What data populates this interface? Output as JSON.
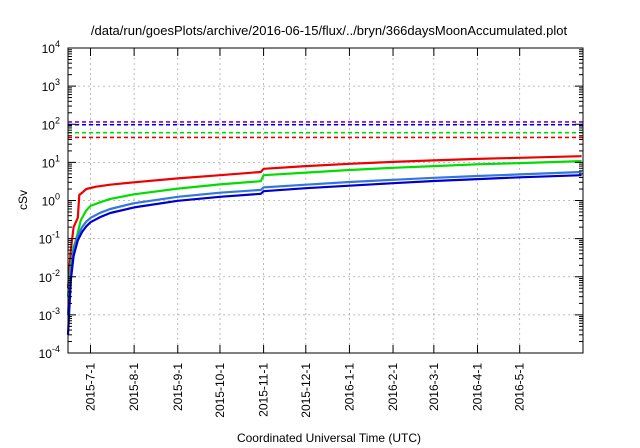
{
  "chart_data": {
    "type": "line",
    "title": "/data/run/goesPlots/archive/2016-06-15/flux/../bryn/366daysMoonAccumulated.plot",
    "xlabel": "Coordinated Universal Time (UTC)",
    "ylabel": "cSv",
    "yscale": "log",
    "ylim": [
      0.0001,
      10000
    ],
    "xlim": [
      "2015-06-15",
      "2016-06-15"
    ],
    "grid": true,
    "x_ticks": [
      "2015-7-1",
      "2015-8-1",
      "2015-9-1",
      "2015-10-1",
      "2015-11-1",
      "2015-12-1",
      "2016-1-1",
      "2016-2-1",
      "2016-3-1",
      "2016-4-1",
      "2016-5-1"
    ],
    "y_ticks": [
      {
        "base": "10",
        "exp": "-4"
      },
      {
        "base": "10",
        "exp": "-3"
      },
      {
        "base": "10",
        "exp": "-2"
      },
      {
        "base": "10",
        "exp": "-1"
      },
      {
        "base": "10",
        "exp": "0"
      },
      {
        "base": "10",
        "exp": "1"
      },
      {
        "base": "10",
        "exp": "2"
      },
      {
        "base": "10",
        "exp": "3"
      },
      {
        "base": "10",
        "exp": "4"
      }
    ],
    "thresholds": [
      {
        "color": "#8800dd",
        "value": 115
      },
      {
        "color": "#0000cc",
        "value": 97
      },
      {
        "color": "#00dd00",
        "value": 60
      },
      {
        "color": "#ee0000",
        "value": 45
      }
    ],
    "series": [
      {
        "color": "#ee0000",
        "x": [
          "2015-06-15",
          "2015-06-17",
          "2015-06-19",
          "2015-06-22",
          "2015-06-23",
          "2015-06-25",
          "2015-06-28",
          "2015-07-05",
          "2015-07-15",
          "2015-08-01",
          "2015-09-01",
          "2015-10-01",
          "2015-10-30",
          "2015-11-01",
          "2015-12-01",
          "2016-01-01",
          "2016-02-01",
          "2016-03-01",
          "2016-04-01",
          "2016-05-01",
          "2016-06-14"
        ],
        "y": [
          0.005,
          0.05,
          0.2,
          0.35,
          1.4,
          1.6,
          2.0,
          2.3,
          2.6,
          3.0,
          3.8,
          4.6,
          5.6,
          6.8,
          8.0,
          9.2,
          10.3,
          11.3,
          12.3,
          13.2,
          14.5
        ]
      },
      {
        "color": "#00dd00",
        "x": [
          "2015-06-15",
          "2015-06-17",
          "2015-06-19",
          "2015-06-21",
          "2015-06-24",
          "2015-06-28",
          "2015-07-01",
          "2015-07-08",
          "2015-07-15",
          "2015-08-01",
          "2015-09-01",
          "2015-10-01",
          "2015-10-30",
          "2015-11-01",
          "2015-12-01",
          "2016-01-01",
          "2016-02-01",
          "2016-03-01",
          "2016-04-01",
          "2016-05-01",
          "2016-06-14"
        ],
        "y": [
          0.003,
          0.02,
          0.06,
          0.1,
          0.3,
          0.55,
          0.72,
          0.9,
          1.1,
          1.45,
          2.05,
          2.65,
          3.2,
          4.6,
          5.4,
          6.3,
          7.2,
          8.0,
          8.9,
          9.6,
          10.8
        ]
      },
      {
        "color": "#3377dd",
        "x": [
          "2015-06-15",
          "2015-06-17",
          "2015-06-19",
          "2015-06-22",
          "2015-06-25",
          "2015-06-28",
          "2015-07-01",
          "2015-07-08",
          "2015-07-15",
          "2015-08-01",
          "2015-09-01",
          "2015-10-01",
          "2015-10-30",
          "2015-11-01",
          "2015-12-01",
          "2016-01-01",
          "2016-02-01",
          "2016-03-01",
          "2016-04-01",
          "2016-05-01",
          "2016-06-14"
        ],
        "y": [
          0.001,
          0.015,
          0.05,
          0.12,
          0.2,
          0.28,
          0.35,
          0.48,
          0.6,
          0.85,
          1.25,
          1.6,
          1.9,
          2.2,
          2.6,
          3.05,
          3.5,
          3.95,
          4.4,
          4.85,
          5.6
        ]
      },
      {
        "color": "#0000cc",
        "x": [
          "2015-06-15",
          "2015-06-17",
          "2015-06-19",
          "2015-06-22",
          "2015-06-25",
          "2015-06-28",
          "2015-07-01",
          "2015-07-08",
          "2015-07-15",
          "2015-08-01",
          "2015-09-01",
          "2015-10-01",
          "2015-10-30",
          "2015-11-01",
          "2015-12-01",
          "2016-01-01",
          "2016-02-01",
          "2016-03-01",
          "2016-04-01",
          "2016-05-01",
          "2016-06-14"
        ],
        "y": [
          0.0003,
          0.008,
          0.035,
          0.09,
          0.15,
          0.21,
          0.27,
          0.37,
          0.47,
          0.66,
          0.98,
          1.25,
          1.5,
          1.75,
          2.1,
          2.45,
          2.85,
          3.25,
          3.65,
          4.05,
          4.6
        ]
      }
    ]
  }
}
